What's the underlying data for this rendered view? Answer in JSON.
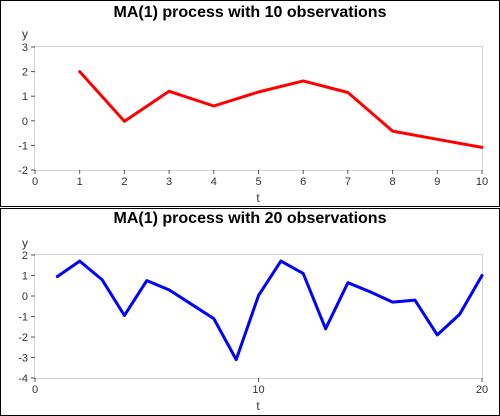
{
  "chart_data": [
    {
      "type": "line",
      "title": "MA(1) process with 10 observations",
      "xlabel": "t",
      "ylabel": "y",
      "xlim": [
        0,
        10
      ],
      "ylim": [
        -2,
        3
      ],
      "xticks": [
        0,
        1,
        2,
        3,
        4,
        5,
        6,
        7,
        8,
        9,
        10
      ],
      "yticks": [
        -2,
        -1,
        0,
        1,
        2,
        3
      ],
      "grid": false,
      "series": [
        {
          "color": "#ff0000",
          "x": [
            1,
            2,
            3,
            4,
            5,
            6,
            7,
            8,
            9,
            10
          ],
          "y": [
            2.0,
            -0.02,
            1.2,
            0.6,
            1.17,
            1.62,
            1.15,
            -0.42,
            -0.75,
            -1.08
          ]
        }
      ]
    },
    {
      "type": "line",
      "title": "MA(1) process with 20 observations",
      "xlabel": "t",
      "ylabel": "y",
      "xlim": [
        0,
        20
      ],
      "ylim": [
        -4,
        2
      ],
      "xticks": [
        0,
        10,
        20
      ],
      "yticks": [
        -4,
        -3,
        -2,
        -1,
        0,
        1,
        2
      ],
      "grid": false,
      "series": [
        {
          "color": "#0000ff",
          "x": [
            1,
            2,
            3,
            4,
            5,
            6,
            7,
            8,
            9,
            10,
            11,
            12,
            13,
            14,
            15,
            16,
            17,
            18,
            19,
            20
          ],
          "y": [
            0.95,
            1.7,
            0.8,
            -0.95,
            0.75,
            0.3,
            -0.4,
            -1.1,
            -3.1,
            0.02,
            1.7,
            1.1,
            -1.6,
            0.65,
            0.2,
            -0.3,
            -0.2,
            -1.9,
            -0.9,
            1.0
          ]
        }
      ]
    }
  ]
}
